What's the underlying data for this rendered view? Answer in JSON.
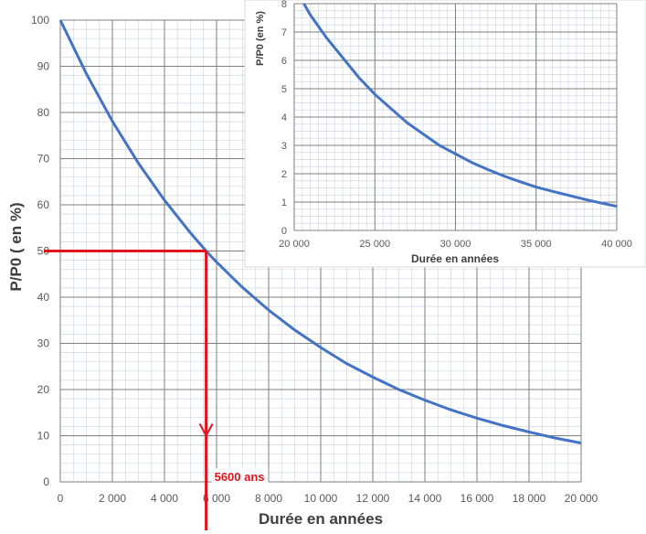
{
  "colors": {
    "curve": "#4472C4",
    "annotation": "#E0141E",
    "major_grid": "#7F7F7F",
    "minor_grid": "#D0D8E4",
    "axis_text": "#595959",
    "title_text": "#3F3F3F",
    "inset_border": "#D9D9D9"
  },
  "chart_data": [
    {
      "type": "line",
      "title": "",
      "xlabel": "Durée en années",
      "ylabel": "P/P0 ( en %)",
      "xlim": [
        0,
        20000
      ],
      "ylim": [
        0,
        100
      ],
      "x_ticks": [
        0,
        2000,
        4000,
        6000,
        8000,
        10000,
        12000,
        14000,
        16000,
        18000,
        20000
      ],
      "x_tick_labels": [
        "0",
        "2 000",
        "4 000",
        "6 000",
        "8 000",
        "10 000",
        "12 000",
        "14 000",
        "16 000",
        "18 000",
        "20 000"
      ],
      "y_ticks": [
        0,
        10,
        20,
        30,
        40,
        50,
        60,
        70,
        80,
        90,
        100
      ],
      "y_tick_labels": [
        "0",
        "10",
        "20",
        "30",
        "40",
        "50",
        "60",
        "70",
        "80",
        "90",
        "100"
      ],
      "grid": true,
      "series": [
        {
          "x": [
            0,
            1000,
            2000,
            3000,
            4000,
            5000,
            5600,
            6000,
            7000,
            8000,
            9000,
            10000,
            11000,
            12000,
            13000,
            14000,
            15000,
            16000,
            17000,
            18000,
            19000,
            20000
          ],
          "values": [
            100,
            88.4,
            78.1,
            69.0,
            61.0,
            53.9,
            50,
            47.6,
            42.1,
            37.2,
            32.9,
            29.1,
            25.6,
            22.7,
            20.0,
            17.7,
            15.6,
            13.8,
            12.2,
            10.8,
            9.5,
            8.4
          ]
        }
      ],
      "annotations": [
        {
          "type": "horizontal-guide",
          "y": 50,
          "x_end": 5600
        },
        {
          "type": "vertical-arrow",
          "x": 5600,
          "from_y": 50,
          "to_y": 10
        },
        {
          "type": "label",
          "text": "5600 ans",
          "x": 5600
        }
      ]
    },
    {
      "type": "line",
      "title": "",
      "xlabel": "Durée en années",
      "ylabel": "P/P0 (en %)",
      "xlim": [
        20000,
        40000
      ],
      "ylim": [
        0,
        8
      ],
      "x_ticks": [
        20000,
        25000,
        30000,
        35000,
        40000
      ],
      "x_tick_labels": [
        "20 000",
        "25 000",
        "30 000",
        "35 000",
        "40 000"
      ],
      "y_ticks": [
        0,
        1,
        2,
        3,
        4,
        5,
        6,
        7,
        8
      ],
      "y_tick_labels": [
        "0",
        "1",
        "2",
        "3",
        "4",
        "5",
        "6",
        "7",
        "8"
      ],
      "grid": true,
      "series": [
        {
          "x": [
            20600,
            21000,
            22000,
            23000,
            24000,
            25000,
            26000,
            27000,
            28000,
            29000,
            30000,
            31000,
            32000,
            33000,
            34000,
            35000,
            36000,
            37000,
            38000,
            39000,
            40000
          ],
          "values": [
            8.0,
            7.6,
            6.8,
            6.1,
            5.4,
            4.8,
            4.3,
            3.8,
            3.4,
            3.0,
            2.7,
            2.4,
            2.15,
            1.92,
            1.72,
            1.53,
            1.38,
            1.24,
            1.1,
            0.97,
            0.85
          ]
        }
      ]
    }
  ]
}
